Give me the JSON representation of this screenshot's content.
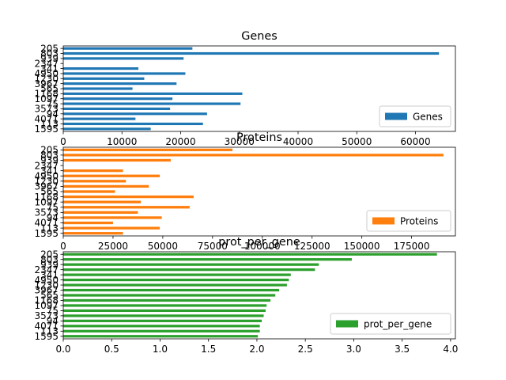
{
  "chart_data": [
    {
      "type": "bar",
      "orientation": "horizontal",
      "title": "Genes",
      "color": "#1f77b4",
      "xlim": [
        0,
        66800
      ],
      "xticks": [
        0,
        10000,
        20000,
        30000,
        40000,
        50000,
        60000
      ],
      "legend_position": "lower-right",
      "categories": [
        "205",
        "803",
        "939",
        "2347",
        "341",
        "4950",
        "1230",
        "3967",
        "565",
        "1168",
        "1097",
        "75",
        "3573",
        "94",
        "4071",
        "113",
        "1595"
      ],
      "series": [
        {
          "name": "Genes",
          "values": [
            22000,
            64000,
            20500,
            0,
            12800,
            20800,
            13800,
            19300,
            11800,
            30500,
            18600,
            30200,
            18200,
            24500,
            12300,
            23800,
            14900
          ]
        }
      ]
    },
    {
      "type": "bar",
      "orientation": "horizontal",
      "title": "Proteins",
      "color": "#ff7f0e",
      "xlim": [
        0,
        197000
      ],
      "xticks": [
        0,
        25000,
        50000,
        75000,
        100000,
        125000,
        150000,
        175000
      ],
      "legend_position": "lower-right",
      "categories": [
        "205",
        "803",
        "939",
        "2347",
        "341",
        "4950",
        "1230",
        "3967",
        "565",
        "1168",
        "1097",
        "75",
        "3573",
        "94",
        "4071",
        "113",
        "1595"
      ],
      "series": [
        {
          "name": "Proteins",
          "values": [
            85000,
            191000,
            54000,
            0,
            30000,
            48500,
            31500,
            43000,
            26000,
            65500,
            39000,
            63500,
            37500,
            49500,
            25000,
            48500,
            30000
          ]
        }
      ]
    },
    {
      "type": "bar",
      "orientation": "horizontal",
      "title": "prot_per_gene",
      "color": "#2ca02c",
      "xlim": [
        0,
        4.05
      ],
      "xticks": [
        0.0,
        0.5,
        1.0,
        1.5,
        2.0,
        2.5,
        3.0,
        3.5,
        4.0
      ],
      "legend_position": "lower-right",
      "categories": [
        "205",
        "803",
        "939",
        "2347",
        "341",
        "4950",
        "1230",
        "3967",
        "565",
        "1168",
        "1097",
        "75",
        "3573",
        "94",
        "4071",
        "113",
        "1595"
      ],
      "series": [
        {
          "name": "prot_per_gene",
          "values": [
            3.86,
            2.98,
            2.64,
            2.6,
            2.35,
            2.33,
            2.31,
            2.23,
            2.19,
            2.14,
            2.1,
            2.09,
            2.07,
            2.05,
            2.03,
            2.03,
            2.01
          ]
        }
      ]
    }
  ]
}
